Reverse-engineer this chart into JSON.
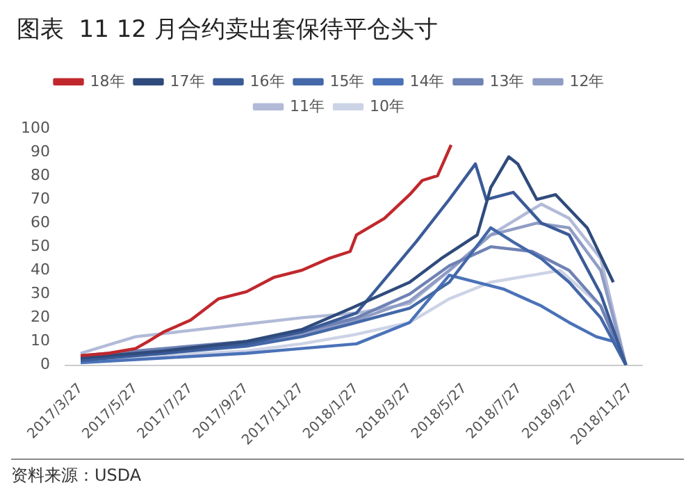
{
  "chart_data": {
    "type": "line",
    "title": "图表  11 12 月合约卖出套保待平仓头寸",
    "annotations": [
      "资料来源：USDA"
    ],
    "xlim": [
      "2017-03-10",
      "2018-12-10"
    ],
    "xticks": [
      {
        "value": "2017-03-27",
        "label": "2017/3/27"
      },
      {
        "value": "2017-05-27",
        "label": "2017/5/27"
      },
      {
        "value": "2017-07-27",
        "label": "2017/7/27"
      },
      {
        "value": "2017-09-27",
        "label": "2017/9/27"
      },
      {
        "value": "2017-11-27",
        "label": "2017/11/27"
      },
      {
        "value": "2018-01-27",
        "label": "2018/1/27"
      },
      {
        "value": "2018-03-27",
        "label": "2018/3/27"
      },
      {
        "value": "2018-05-27",
        "label": "2018/5/27"
      },
      {
        "value": "2018-07-27",
        "label": "2018/7/27"
      },
      {
        "value": "2018-09-27",
        "label": "2018/9/27"
      },
      {
        "value": "2018-11-27",
        "label": "2018/11/27"
      }
    ],
    "ylim": [
      0,
      100
    ],
    "yticks": [
      0,
      10,
      20,
      30,
      40,
      50,
      60,
      70,
      80,
      90,
      100
    ],
    "grid": false,
    "legend": "top",
    "marker": "none",
    "line_style": "solid",
    "series": [
      {
        "name": "18年",
        "color": "#c0282d",
        "x": [
          "2017-03-27",
          "2017-04-27",
          "2017-05-27",
          "2017-06-10",
          "2017-06-27",
          "2017-07-27",
          "2017-08-27",
          "2017-09-27",
          "2017-10-27",
          "2017-11-27",
          "2017-12-27",
          "2018-01-20",
          "2018-01-27",
          "2018-02-27",
          "2018-03-27",
          "2018-04-10",
          "2018-04-27",
          "2018-05-12"
        ],
        "values": [
          4,
          5,
          7,
          10,
          14,
          19,
          28,
          31,
          37,
          40,
          45,
          48,
          55,
          62,
          72,
          78,
          80,
          93
        ]
      },
      {
        "name": "17年",
        "color": "#2f4b7c",
        "x": [
          "2017-03-27",
          "2017-06-27",
          "2017-09-27",
          "2017-11-27",
          "2018-01-27",
          "2018-03-27",
          "2018-05-01",
          "2018-06-10",
          "2018-06-25",
          "2018-07-15",
          "2018-07-25",
          "2018-08-15",
          "2018-09-05",
          "2018-10-10",
          "2018-11-08"
        ],
        "values": [
          3,
          6,
          10,
          15,
          25,
          35,
          45,
          55,
          75,
          88,
          85,
          70,
          72,
          58,
          35
        ]
      },
      {
        "name": "16年",
        "color": "#3b5b98",
        "x": [
          "2017-03-27",
          "2017-06-27",
          "2017-09-27",
          "2017-11-27",
          "2018-01-27",
          "2018-04-03",
          "2018-05-10",
          "2018-06-08",
          "2018-06-20",
          "2018-07-20",
          "2018-08-20",
          "2018-09-20",
          "2018-10-25",
          "2018-11-22"
        ],
        "values": [
          2,
          5,
          9,
          14,
          22,
          52,
          70,
          85,
          70,
          73,
          60,
          55,
          30,
          0
        ]
      },
      {
        "name": "15年",
        "color": "#4468a8",
        "x": [
          "2017-03-27",
          "2017-06-27",
          "2017-09-27",
          "2017-11-27",
          "2018-01-27",
          "2018-03-27",
          "2018-05-10",
          "2018-06-25",
          "2018-07-20",
          "2018-08-20",
          "2018-09-20",
          "2018-10-25",
          "2018-11-22"
        ],
        "values": [
          3,
          5,
          8,
          12,
          18,
          24,
          35,
          58,
          52,
          45,
          35,
          20,
          0
        ]
      },
      {
        "name": "14年",
        "color": "#4a72b8",
        "x": [
          "2017-03-27",
          "2017-06-27",
          "2017-09-27",
          "2017-11-27",
          "2018-01-27",
          "2018-03-27",
          "2018-05-10",
          "2018-07-10",
          "2018-08-20",
          "2018-09-20",
          "2018-10-20",
          "2018-11-08",
          "2018-11-22"
        ],
        "values": [
          1,
          3,
          5,
          7,
          9,
          18,
          38,
          32,
          25,
          18,
          12,
          10,
          0
        ]
      },
      {
        "name": "13年",
        "color": "#6f82b5",
        "x": [
          "2017-03-27",
          "2017-06-27",
          "2017-09-27",
          "2017-11-27",
          "2018-01-27",
          "2018-03-27",
          "2018-05-10",
          "2018-06-25",
          "2018-08-10",
          "2018-09-20",
          "2018-10-25",
          "2018-11-22"
        ],
        "values": [
          4,
          7,
          10,
          14,
          20,
          30,
          42,
          50,
          48,
          40,
          25,
          0
        ]
      },
      {
        "name": "12年",
        "color": "#8f9cc4",
        "x": [
          "2017-03-27",
          "2017-06-27",
          "2017-09-27",
          "2017-11-27",
          "2018-01-27",
          "2018-03-27",
          "2018-05-10",
          "2018-06-25",
          "2018-08-15",
          "2018-09-20",
          "2018-10-25",
          "2018-11-22"
        ],
        "values": [
          3,
          6,
          9,
          13,
          19,
          27,
          40,
          55,
          60,
          58,
          40,
          0
        ]
      },
      {
        "name": "11年",
        "color": "#b2bad8",
        "x": [
          "2017-03-27",
          "2017-05-27",
          "2017-08-27",
          "2017-11-27",
          "2018-01-27",
          "2018-03-27",
          "2018-05-10",
          "2018-06-25",
          "2018-08-20",
          "2018-09-20",
          "2018-10-25",
          "2018-11-22"
        ],
        "values": [
          5,
          12,
          16,
          20,
          22,
          26,
          40,
          55,
          68,
          62,
          45,
          0
        ]
      },
      {
        "name": "10年",
        "color": "#cdd3e6",
        "x": [
          "2017-03-27",
          "2017-06-27",
          "2017-09-27",
          "2017-11-27",
          "2018-01-27",
          "2018-03-27",
          "2018-05-10",
          "2018-06-25",
          "2018-08-10",
          "2018-09-10",
          "2018-10-25",
          "2018-11-22"
        ],
        "values": [
          2,
          4,
          6,
          9,
          13,
          18,
          28,
          35,
          38,
          40,
          25,
          0
        ]
      }
    ]
  }
}
